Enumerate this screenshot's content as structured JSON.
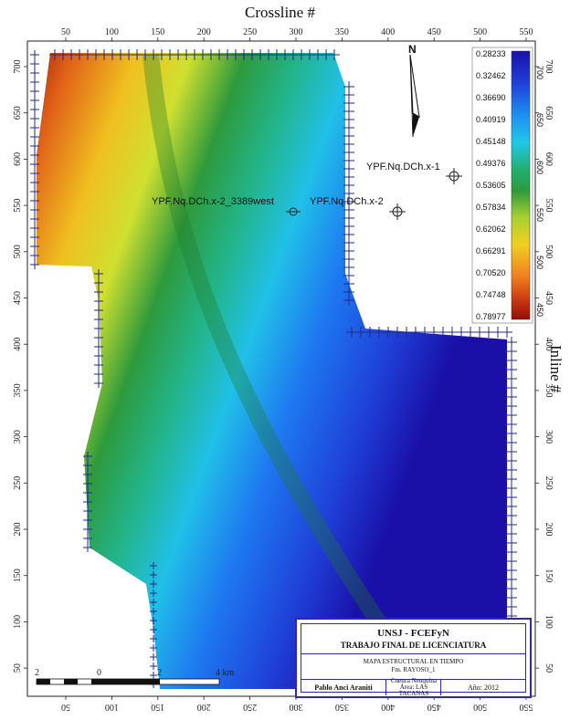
{
  "axes": {
    "top_title": "Crossline #",
    "right_title": "Inline #",
    "top_ticks": [
      "50",
      "100",
      "150",
      "200",
      "250",
      "300",
      "350",
      "400",
      "450",
      "500",
      "550"
    ],
    "bottom_ticks": [
      "50",
      "100",
      "150",
      "200",
      "250",
      "300",
      "350",
      "400",
      "450",
      "500",
      "550"
    ],
    "left_ticks": [
      "700",
      "650",
      "600",
      "550",
      "500",
      "450",
      "400",
      "350",
      "300",
      "250",
      "200",
      "150",
      "100",
      "50"
    ],
    "right_ticks": [
      "700",
      "650",
      "600",
      "550",
      "500",
      "450",
      "400",
      "350",
      "300",
      "250",
      "200",
      "150",
      "100",
      "50"
    ]
  },
  "north_label": "N",
  "wells": [
    {
      "label": "YPF.Nq.DCh.x-1"
    },
    {
      "label": "YPF.Nq.DCh.x-2_3389west"
    },
    {
      "label": "YPF.Nq.DCh.x-2"
    }
  ],
  "legend": {
    "values": [
      "0.28233",
      "0.32462",
      "0.36690",
      "0.40919",
      "0.45148",
      "0.49376",
      "0.53605",
      "0.57834",
      "0.62062",
      "0.66291",
      "0.70520",
      "0.74748",
      "0.78977"
    ],
    "axis_ticks": [
      "700",
      "650",
      "600",
      "550",
      "500",
      "450"
    ],
    "colors": [
      "#1a10a8",
      "#1f40d8",
      "#1e78f0",
      "#20b8ee",
      "#24c8b0",
      "#22a85a",
      "#2e9a3c",
      "#8ec83a",
      "#d8e030",
      "#f0d020",
      "#f0a020",
      "#e06018",
      "#a01810"
    ]
  },
  "scale_bar": {
    "labels": [
      "2",
      "0",
      "2",
      "4 km"
    ]
  },
  "title_block": {
    "institution": "UNSJ - FCEFyN",
    "work": "TRABAJO FINAL DE LICENCIATURA",
    "map_title": "MAPA ESTRUCTURAL EN TIEMPO",
    "formation": "Fm. RAYOSO_1",
    "author": "Pablo Anci Araniti",
    "basin": "Cuenca Neuquina",
    "area": "Área: LAS TACANAS",
    "year": "Año: 2012"
  }
}
